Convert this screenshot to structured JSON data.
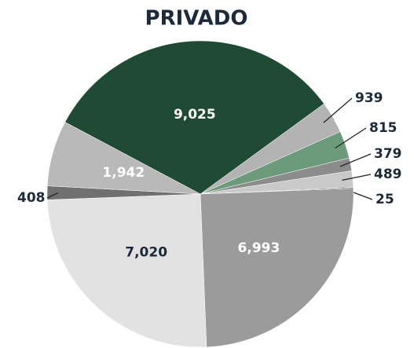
{
  "chart_data": {
    "type": "pie",
    "title": "PRIVADO",
    "values": [
      9025,
      939,
      815,
      379,
      489,
      25,
      6993,
      7020,
      408,
      1942
    ],
    "value_labels": [
      "9,025",
      "939",
      "815",
      "379",
      "489",
      "25",
      "6,993",
      "7,020",
      "408",
      "1,942"
    ],
    "colors": [
      "#1f4a33",
      "#b3b3b3",
      "#6c9b7c",
      "#8c8c8c",
      "#c9c9c9",
      "#1c3a4a",
      "#9b9b9b",
      "#e2e2e2",
      "#707070",
      "#b9b9b9"
    ]
  }
}
